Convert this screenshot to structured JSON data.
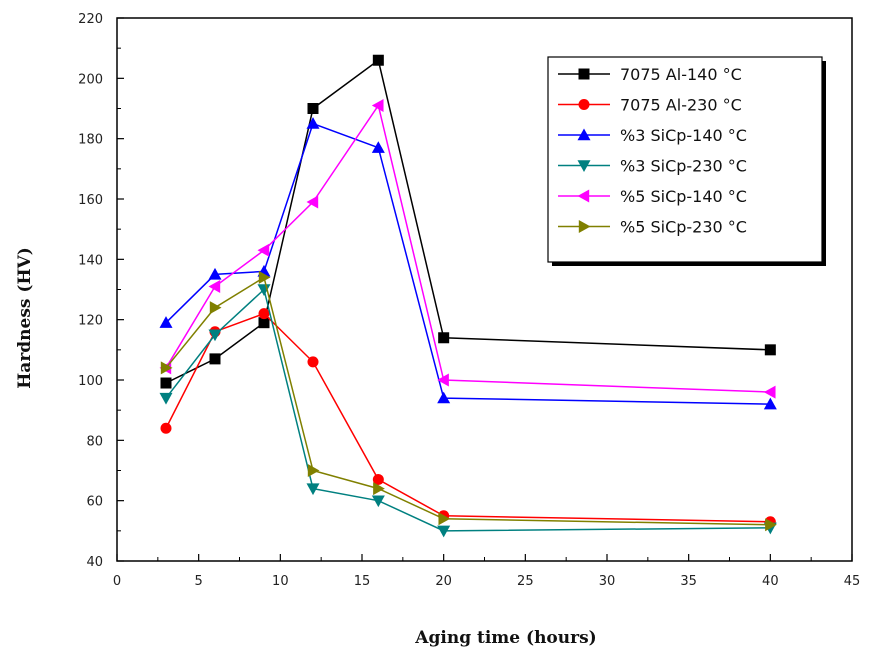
{
  "chart_data": {
    "type": "line",
    "title": "",
    "xlabel": "Aging time (hours)",
    "ylabel": "Hardness (HV)",
    "xlim": [
      0,
      45
    ],
    "ylim": [
      40,
      220
    ],
    "x_ticks": [
      0,
      5,
      10,
      15,
      20,
      25,
      30,
      35,
      40,
      45
    ],
    "y_ticks": [
      40,
      60,
      80,
      100,
      120,
      140,
      160,
      180,
      200,
      220
    ],
    "grid": false,
    "legend_position": "top-right",
    "x": [
      3,
      6,
      9,
      12,
      16,
      20,
      40
    ],
    "series": [
      {
        "name": "7075 Al-140 °C",
        "color": "#000000",
        "marker": "square",
        "values": [
          99,
          107,
          119,
          190,
          206,
          114,
          110
        ]
      },
      {
        "name": "7075 Al-230 °C",
        "color": "#ff0000",
        "marker": "circle",
        "values": [
          84,
          116,
          122,
          106,
          67,
          55,
          53
        ]
      },
      {
        "name": "%3 SiCp-140 °C",
        "color": "#0000ff",
        "marker": "triangle-up",
        "values": [
          119,
          135,
          136,
          185,
          177,
          94,
          92
        ]
      },
      {
        "name": "%3 SiCp-230 °C",
        "color": "#008080",
        "marker": "triangle-down",
        "values": [
          94,
          115,
          130,
          64,
          60,
          50,
          51
        ]
      },
      {
        "name": "%5 SiCp-140 °C",
        "color": "#ff00ff",
        "marker": "triangle-left",
        "values": [
          104,
          131,
          143,
          159,
          191,
          100,
          96
        ]
      },
      {
        "name": "%5 SiCp-230 °C",
        "color": "#808000",
        "marker": "triangle-right",
        "values": [
          104,
          124,
          134,
          70,
          64,
          54,
          52
        ]
      }
    ]
  }
}
